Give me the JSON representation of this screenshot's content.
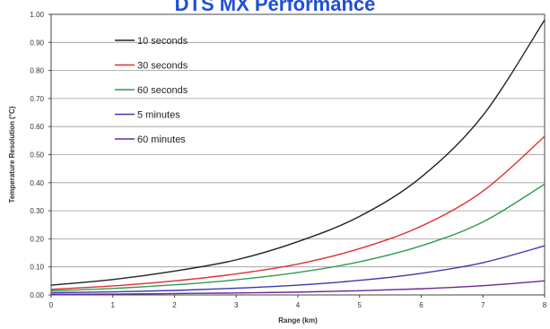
{
  "chart_data": {
    "type": "line",
    "title": "DTS MX Performance",
    "xlabel": "Range (km)",
    "ylabel": "Temperature Resolution (°C)",
    "xlim": [
      0,
      8
    ],
    "ylim": [
      0,
      1.0
    ],
    "x_ticks": [
      "0",
      "1",
      "2",
      "3",
      "4",
      "5",
      "6",
      "7",
      "8"
    ],
    "y_ticks": [
      "0.00",
      "0.10",
      "0.20",
      "0.30",
      "0.40",
      "0.50",
      "0.60",
      "0.70",
      "0.80",
      "0.90",
      "1.00"
    ],
    "grid": "horizontal",
    "legend_position": "top-left",
    "x": [
      0,
      1,
      2,
      3,
      4,
      5,
      6,
      7,
      8
    ],
    "series": [
      {
        "name": "10 seconds",
        "color": "#222222",
        "values": [
          0.035,
          0.055,
          0.085,
          0.125,
          0.19,
          0.28,
          0.42,
          0.64,
          0.98
        ]
      },
      {
        "name": "30 seconds",
        "color": "#e03030",
        "values": [
          0.02,
          0.032,
          0.05,
          0.075,
          0.11,
          0.165,
          0.245,
          0.37,
          0.565
        ]
      },
      {
        "name": "60 seconds",
        "color": "#2e9c4e",
        "values": [
          0.015,
          0.023,
          0.036,
          0.054,
          0.08,
          0.118,
          0.175,
          0.26,
          0.395
        ]
      },
      {
        "name": "5 minutes",
        "color": "#3a3ab0",
        "values": [
          0.008,
          0.011,
          0.016,
          0.024,
          0.035,
          0.052,
          0.077,
          0.115,
          0.175
        ]
      },
      {
        "name": "60 minutes",
        "color": "#6a2a9a",
        "values": [
          0.002,
          0.003,
          0.005,
          0.007,
          0.01,
          0.015,
          0.022,
          0.033,
          0.05
        ]
      }
    ]
  }
}
